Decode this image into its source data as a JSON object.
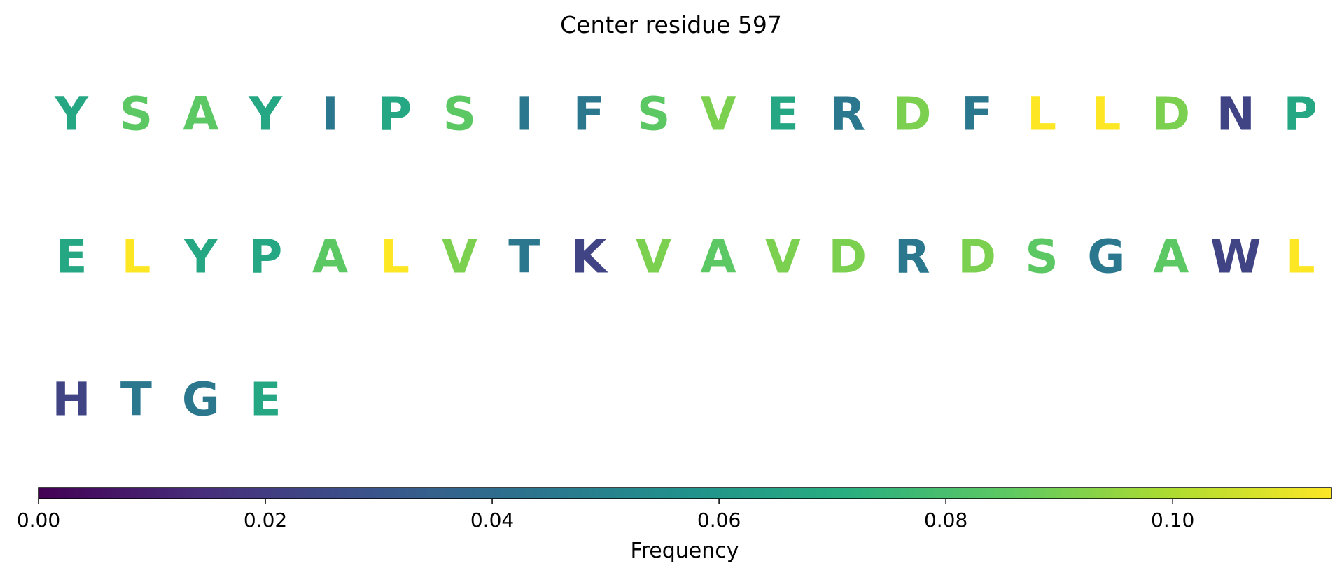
{
  "chart_data": {
    "type": "heatmap",
    "title": "Center residue 597",
    "colormap": "viridis",
    "colorbar": {
      "label": "Frequency",
      "range": [
        0,
        0.114
      ],
      "ticks": [
        "0.00",
        "0.02",
        "0.04",
        "0.06",
        "0.08",
        "0.10"
      ],
      "tick_values": [
        0,
        0.02,
        0.04,
        0.06,
        0.08,
        0.1
      ],
      "orientation": "horizontal",
      "placement": "bottom"
    },
    "grid": false,
    "columns_per_row": 20,
    "residues": [
      {
        "letter": "Y",
        "frequency": 0.068
      },
      {
        "letter": "S",
        "frequency": 0.085
      },
      {
        "letter": "A",
        "frequency": 0.085
      },
      {
        "letter": "Y",
        "frequency": 0.068
      },
      {
        "letter": "I",
        "frequency": 0.045
      },
      {
        "letter": "P",
        "frequency": 0.068
      },
      {
        "letter": "S",
        "frequency": 0.085
      },
      {
        "letter": "I",
        "frequency": 0.045
      },
      {
        "letter": "F",
        "frequency": 0.045
      },
      {
        "letter": "S",
        "frequency": 0.085
      },
      {
        "letter": "V",
        "frequency": 0.091
      },
      {
        "letter": "E",
        "frequency": 0.068
      },
      {
        "letter": "R",
        "frequency": 0.045
      },
      {
        "letter": "D",
        "frequency": 0.091
      },
      {
        "letter": "F",
        "frequency": 0.045
      },
      {
        "letter": "L",
        "frequency": 0.114
      },
      {
        "letter": "L",
        "frequency": 0.114
      },
      {
        "letter": "D",
        "frequency": 0.091
      },
      {
        "letter": "N",
        "frequency": 0.023
      },
      {
        "letter": "P",
        "frequency": 0.068
      },
      {
        "letter": "E",
        "frequency": 0.068
      },
      {
        "letter": "L",
        "frequency": 0.114
      },
      {
        "letter": "Y",
        "frequency": 0.068
      },
      {
        "letter": "P",
        "frequency": 0.068
      },
      {
        "letter": "A",
        "frequency": 0.085
      },
      {
        "letter": "L",
        "frequency": 0.114
      },
      {
        "letter": "V",
        "frequency": 0.091
      },
      {
        "letter": "T",
        "frequency": 0.045
      },
      {
        "letter": "K",
        "frequency": 0.023
      },
      {
        "letter": "V",
        "frequency": 0.091
      },
      {
        "letter": "A",
        "frequency": 0.085
      },
      {
        "letter": "V",
        "frequency": 0.091
      },
      {
        "letter": "D",
        "frequency": 0.091
      },
      {
        "letter": "R",
        "frequency": 0.045
      },
      {
        "letter": "D",
        "frequency": 0.091
      },
      {
        "letter": "S",
        "frequency": 0.085
      },
      {
        "letter": "G",
        "frequency": 0.045
      },
      {
        "letter": "A",
        "frequency": 0.085
      },
      {
        "letter": "W",
        "frequency": 0.023
      },
      {
        "letter": "L",
        "frequency": 0.114
      },
      {
        "letter": "H",
        "frequency": 0.023
      },
      {
        "letter": "T",
        "frequency": 0.045
      },
      {
        "letter": "G",
        "frequency": 0.045
      },
      {
        "letter": "E",
        "frequency": 0.068
      }
    ]
  }
}
